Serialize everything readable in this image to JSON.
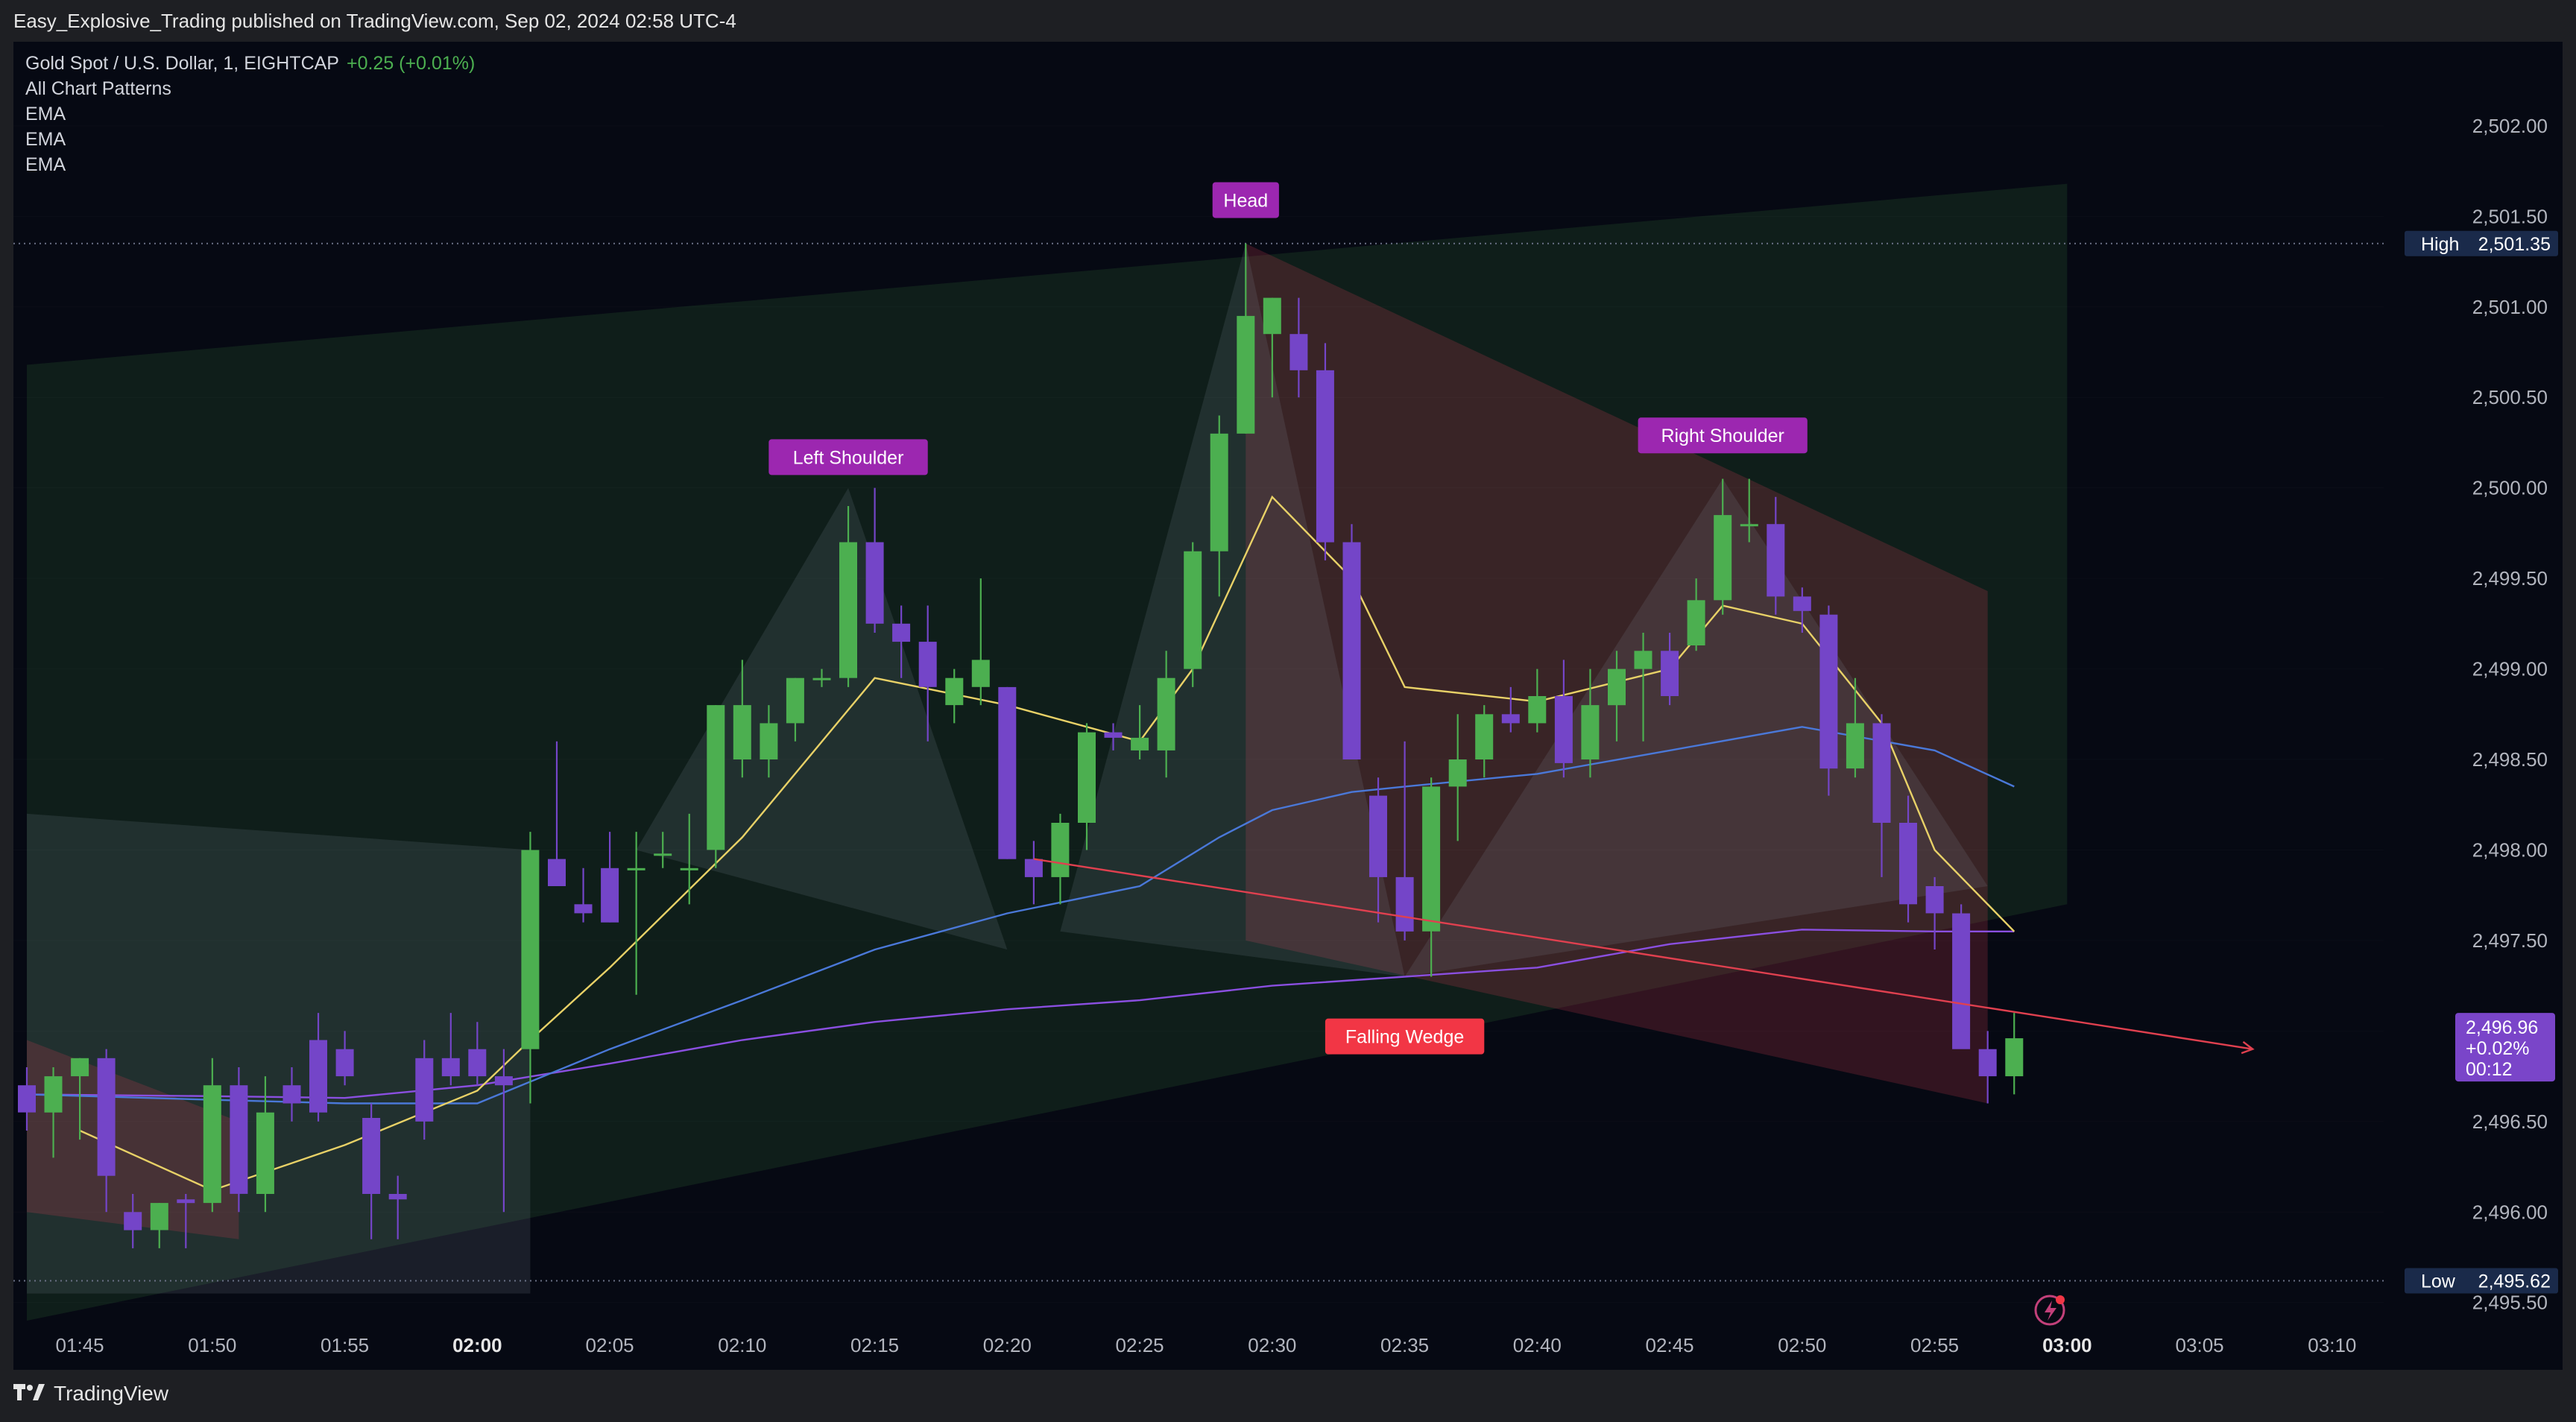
{
  "header": {
    "published": "Easy_Explosive_Trading published on TradingView.com, Sep 02, 2024 02:58 UTC-4"
  },
  "legend": {
    "symbol": "Gold Spot / U.S. Dollar, 1, EIGHTCAP",
    "change": "+0.25 (+0.01%)",
    "indicators": [
      "All Chart Patterns",
      "EMA",
      "EMA",
      "EMA"
    ]
  },
  "footer": {
    "brand": "TradingView",
    "logo_icon": "tradingview-logo-icon"
  },
  "colors": {
    "background": "#060913",
    "candle_up": "#4caf50",
    "candle_down": "#7445c8",
    "ema_fast": "#e8d167",
    "ema_mid": "#4a78d8",
    "ema_slow": "#8a4fe0",
    "pattern_label": "#9c27b0",
    "wedge_label": "#f23645",
    "trend_line": "#e0404f",
    "price_tag": "#7a45c9",
    "high_low_tag": "#1a2a4a"
  },
  "chart_data": {
    "type": "candlestick",
    "x_ticks": [
      "01:45",
      "01:50",
      "01:55",
      "02:00",
      "02:05",
      "02:10",
      "02:15",
      "02:20",
      "02:25",
      "02:30",
      "02:35",
      "02:40",
      "02:45",
      "02:50",
      "02:55",
      "03:00",
      "03:05",
      "03:10"
    ],
    "bold_x_ticks": [
      "02:00",
      "03:00"
    ],
    "y_ticks": [
      "2,495.50",
      "2,496.00",
      "2,496.50",
      "2,497.00",
      "2,497.50",
      "2,498.00",
      "2,498.50",
      "2,499.00",
      "2,499.50",
      "2,500.00",
      "2,500.50",
      "2,501.00",
      "2,501.50",
      "2,502.00"
    ],
    "ylim": [
      2495.4,
      2502.3
    ],
    "candles": [
      {
        "t": "01:43",
        "o": 2496.7,
        "h": 2496.8,
        "l": 2496.45,
        "c": 2496.55
      },
      {
        "t": "01:44",
        "o": 2496.55,
        "h": 2496.8,
        "l": 2496.3,
        "c": 2496.75
      },
      {
        "t": "01:45",
        "o": 2496.75,
        "h": 2496.85,
        "l": 2496.4,
        "c": 2496.85
      },
      {
        "t": "01:46",
        "o": 2496.85,
        "h": 2496.9,
        "l": 2496.0,
        "c": 2496.2
      },
      {
        "t": "01:47",
        "o": 2496.0,
        "h": 2496.1,
        "l": 2495.8,
        "c": 2495.9
      },
      {
        "t": "01:48",
        "o": 2495.9,
        "h": 2496.05,
        "l": 2495.8,
        "c": 2496.05
      },
      {
        "t": "01:49",
        "o": 2496.07,
        "h": 2496.1,
        "l": 2495.8,
        "c": 2496.05
      },
      {
        "t": "01:50",
        "o": 2496.05,
        "h": 2496.85,
        "l": 2496.0,
        "c": 2496.7
      },
      {
        "t": "01:51",
        "o": 2496.7,
        "h": 2496.8,
        "l": 2496.0,
        "c": 2496.1
      },
      {
        "t": "01:52",
        "o": 2496.1,
        "h": 2496.75,
        "l": 2496.0,
        "c": 2496.55
      },
      {
        "t": "01:53",
        "o": 2496.7,
        "h": 2496.8,
        "l": 2496.5,
        "c": 2496.6
      },
      {
        "t": "01:54",
        "o": 2496.95,
        "h": 2497.1,
        "l": 2496.5,
        "c": 2496.55
      },
      {
        "t": "01:55",
        "o": 2496.9,
        "h": 2497.0,
        "l": 2496.7,
        "c": 2496.75
      },
      {
        "t": "01:56",
        "o": 2496.52,
        "h": 2496.6,
        "l": 2495.85,
        "c": 2496.1
      },
      {
        "t": "01:57",
        "o": 2496.1,
        "h": 2496.2,
        "l": 2495.85,
        "c": 2496.07
      },
      {
        "t": "01:58",
        "o": 2496.85,
        "h": 2496.95,
        "l": 2496.4,
        "c": 2496.5
      },
      {
        "t": "01:59",
        "o": 2496.85,
        "h": 2497.1,
        "l": 2496.7,
        "c": 2496.75
      },
      {
        "t": "02:00",
        "o": 2496.9,
        "h": 2497.05,
        "l": 2496.7,
        "c": 2496.75
      },
      {
        "t": "02:01",
        "o": 2496.75,
        "h": 2496.9,
        "l": 2496.0,
        "c": 2496.7
      },
      {
        "t": "02:02",
        "o": 2496.9,
        "h": 2498.1,
        "l": 2496.6,
        "c": 2498.0
      },
      {
        "t": "02:03",
        "o": 2497.95,
        "h": 2498.6,
        "l": 2497.8,
        "c": 2497.8
      },
      {
        "t": "02:04",
        "o": 2497.7,
        "h": 2497.9,
        "l": 2497.6,
        "c": 2497.65
      },
      {
        "t": "02:05",
        "o": 2497.9,
        "h": 2498.1,
        "l": 2497.6,
        "c": 2497.6
      },
      {
        "t": "02:06",
        "o": 2497.9,
        "h": 2498.1,
        "l": 2497.2,
        "c": 2497.9
      },
      {
        "t": "02:07",
        "o": 2497.98,
        "h": 2498.1,
        "l": 2497.9,
        "c": 2497.98
      },
      {
        "t": "02:08",
        "o": 2497.9,
        "h": 2498.2,
        "l": 2497.7,
        "c": 2497.9
      },
      {
        "t": "02:09",
        "o": 2498.0,
        "h": 2498.8,
        "l": 2497.9,
        "c": 2498.8
      },
      {
        "t": "02:10",
        "o": 2498.5,
        "h": 2499.05,
        "l": 2498.4,
        "c": 2498.8
      },
      {
        "t": "02:11",
        "o": 2498.5,
        "h": 2498.8,
        "l": 2498.4,
        "c": 2498.7
      },
      {
        "t": "02:12",
        "o": 2498.7,
        "h": 2498.95,
        "l": 2498.6,
        "c": 2498.95
      },
      {
        "t": "02:13",
        "o": 2498.95,
        "h": 2499.0,
        "l": 2498.9,
        "c": 2498.95
      },
      {
        "t": "02:14",
        "o": 2498.95,
        "h": 2499.9,
        "l": 2498.9,
        "c": 2499.7
      },
      {
        "t": "02:15",
        "o": 2499.7,
        "h": 2500.0,
        "l": 2499.2,
        "c": 2499.25
      },
      {
        "t": "02:16",
        "o": 2499.25,
        "h": 2499.35,
        "l": 2498.95,
        "c": 2499.15
      },
      {
        "t": "02:17",
        "o": 2499.15,
        "h": 2499.35,
        "l": 2498.6,
        "c": 2498.9
      },
      {
        "t": "02:18",
        "o": 2498.8,
        "h": 2499.0,
        "l": 2498.7,
        "c": 2498.95
      },
      {
        "t": "02:19",
        "o": 2498.9,
        "h": 2499.5,
        "l": 2498.8,
        "c": 2499.05
      },
      {
        "t": "02:20",
        "o": 2498.9,
        "h": 2498.9,
        "l": 2497.95,
        "c": 2497.95
      },
      {
        "t": "02:21",
        "o": 2497.95,
        "h": 2498.05,
        "l": 2497.7,
        "c": 2497.85
      },
      {
        "t": "02:22",
        "o": 2497.85,
        "h": 2498.2,
        "l": 2497.7,
        "c": 2498.15
      },
      {
        "t": "02:23",
        "o": 2498.15,
        "h": 2498.7,
        "l": 2498.0,
        "c": 2498.65
      },
      {
        "t": "02:24",
        "o": 2498.65,
        "h": 2498.7,
        "l": 2498.55,
        "c": 2498.62
      },
      {
        "t": "02:25",
        "o": 2498.55,
        "h": 2498.8,
        "l": 2498.5,
        "c": 2498.62
      },
      {
        "t": "02:26",
        "o": 2498.55,
        "h": 2499.1,
        "l": 2498.4,
        "c": 2498.95
      },
      {
        "t": "02:27",
        "o": 2499.0,
        "h": 2499.7,
        "l": 2498.9,
        "c": 2499.65
      },
      {
        "t": "02:28",
        "o": 2499.65,
        "h": 2500.4,
        "l": 2499.4,
        "c": 2500.3
      },
      {
        "t": "02:29",
        "o": 2500.3,
        "h": 2501.35,
        "l": 2500.3,
        "c": 2500.95
      },
      {
        "t": "02:30",
        "o": 2500.85,
        "h": 2501.05,
        "l": 2500.5,
        "c": 2501.05
      },
      {
        "t": "02:31",
        "o": 2500.85,
        "h": 2501.05,
        "l": 2500.5,
        "c": 2500.65
      },
      {
        "t": "02:32",
        "o": 2500.65,
        "h": 2500.8,
        "l": 2499.6,
        "c": 2499.7
      },
      {
        "t": "02:33",
        "o": 2499.7,
        "h": 2499.8,
        "l": 2498.5,
        "c": 2498.5
      },
      {
        "t": "02:34",
        "o": 2498.3,
        "h": 2498.4,
        "l": 2497.6,
        "c": 2497.85
      },
      {
        "t": "02:35",
        "o": 2497.85,
        "h": 2498.6,
        "l": 2497.5,
        "c": 2497.55
      },
      {
        "t": "02:36",
        "o": 2497.55,
        "h": 2498.4,
        "l": 2497.3,
        "c": 2498.35
      },
      {
        "t": "02:37",
        "o": 2498.35,
        "h": 2498.75,
        "l": 2498.05,
        "c": 2498.5
      },
      {
        "t": "02:38",
        "o": 2498.5,
        "h": 2498.8,
        "l": 2498.4,
        "c": 2498.75
      },
      {
        "t": "02:39",
        "o": 2498.75,
        "h": 2498.9,
        "l": 2498.65,
        "c": 2498.7
      },
      {
        "t": "02:40",
        "o": 2498.7,
        "h": 2499.0,
        "l": 2498.65,
        "c": 2498.85
      },
      {
        "t": "02:41",
        "o": 2498.85,
        "h": 2499.05,
        "l": 2498.4,
        "c": 2498.48
      },
      {
        "t": "02:42",
        "o": 2498.5,
        "h": 2499.0,
        "l": 2498.4,
        "c": 2498.8
      },
      {
        "t": "02:43",
        "o": 2498.8,
        "h": 2499.1,
        "l": 2498.6,
        "c": 2499.0
      },
      {
        "t": "02:44",
        "o": 2499.0,
        "h": 2499.2,
        "l": 2498.6,
        "c": 2499.1
      },
      {
        "t": "02:45",
        "o": 2499.1,
        "h": 2499.2,
        "l": 2498.8,
        "c": 2498.85
      },
      {
        "t": "02:46",
        "o": 2499.13,
        "h": 2499.5,
        "l": 2499.1,
        "c": 2499.38
      },
      {
        "t": "02:47",
        "o": 2499.38,
        "h": 2500.05,
        "l": 2499.3,
        "c": 2499.85
      },
      {
        "t": "02:48",
        "o": 2499.8,
        "h": 2500.05,
        "l": 2499.7,
        "c": 2499.8
      },
      {
        "t": "02:49",
        "o": 2499.8,
        "h": 2499.95,
        "l": 2499.3,
        "c": 2499.4
      },
      {
        "t": "02:50",
        "o": 2499.4,
        "h": 2499.45,
        "l": 2499.2,
        "c": 2499.32
      },
      {
        "t": "02:51",
        "o": 2499.3,
        "h": 2499.35,
        "l": 2498.3,
        "c": 2498.45
      },
      {
        "t": "02:52",
        "o": 2498.45,
        "h": 2498.95,
        "l": 2498.4,
        "c": 2498.7
      },
      {
        "t": "02:53",
        "o": 2498.7,
        "h": 2498.75,
        "l": 2497.85,
        "c": 2498.15
      },
      {
        "t": "02:54",
        "o": 2498.15,
        "h": 2498.3,
        "l": 2497.6,
        "c": 2497.7
      },
      {
        "t": "02:55",
        "o": 2497.8,
        "h": 2497.85,
        "l": 2497.45,
        "c": 2497.65
      },
      {
        "t": "02:56",
        "o": 2497.65,
        "h": 2497.7,
        "l": 2496.95,
        "c": 2496.9
      },
      {
        "t": "02:57",
        "o": 2496.9,
        "h": 2497.0,
        "l": 2496.6,
        "c": 2496.75
      },
      {
        "t": "02:58",
        "o": 2496.75,
        "h": 2497.1,
        "l": 2496.65,
        "c": 2496.96
      }
    ],
    "ema_fast": [
      [
        "01:45",
        2496.45
      ],
      [
        "01:50",
        2496.12
      ],
      [
        "01:55",
        2496.37
      ],
      [
        "02:00",
        2496.67
      ],
      [
        "02:02",
        2496.95
      ],
      [
        "02:05",
        2497.35
      ],
      [
        "02:10",
        2498.07
      ],
      [
        "02:15",
        2498.95
      ],
      [
        "02:20",
        2498.8
      ],
      [
        "02:25",
        2498.6
      ],
      [
        "02:27",
        2499.0
      ],
      [
        "02:30",
        2499.95
      ],
      [
        "02:33",
        2499.5
      ],
      [
        "02:35",
        2498.9
      ],
      [
        "02:40",
        2498.82
      ],
      [
        "02:45",
        2499.0
      ],
      [
        "02:47",
        2499.35
      ],
      [
        "02:50",
        2499.25
      ],
      [
        "02:53",
        2498.7
      ],
      [
        "02:55",
        2498.0
      ],
      [
        "02:58",
        2497.55
      ]
    ],
    "ema_mid": [
      [
        "01:43",
        2496.65
      ],
      [
        "01:50",
        2496.62
      ],
      [
        "01:55",
        2496.6
      ],
      [
        "02:00",
        2496.6
      ],
      [
        "02:05",
        2496.9
      ],
      [
        "02:10",
        2497.17
      ],
      [
        "02:15",
        2497.45
      ],
      [
        "02:20",
        2497.65
      ],
      [
        "02:25",
        2497.8
      ],
      [
        "02:28",
        2498.07
      ],
      [
        "02:30",
        2498.22
      ],
      [
        "02:33",
        2498.32
      ],
      [
        "02:35",
        2498.35
      ],
      [
        "02:40",
        2498.42
      ],
      [
        "02:45",
        2498.55
      ],
      [
        "02:50",
        2498.68
      ],
      [
        "02:55",
        2498.55
      ],
      [
        "02:58",
        2498.35
      ]
    ],
    "ema_slow": [
      [
        "01:43",
        2496.65
      ],
      [
        "01:50",
        2496.64
      ],
      [
        "01:55",
        2496.63
      ],
      [
        "02:00",
        2496.7
      ],
      [
        "02:05",
        2496.82
      ],
      [
        "02:10",
        2496.95
      ],
      [
        "02:15",
        2497.05
      ],
      [
        "02:20",
        2497.12
      ],
      [
        "02:25",
        2497.17
      ],
      [
        "02:30",
        2497.25
      ],
      [
        "02:35",
        2497.3
      ],
      [
        "02:40",
        2497.35
      ],
      [
        "02:45",
        2497.48
      ],
      [
        "02:50",
        2497.56
      ],
      [
        "02:55",
        2497.55
      ],
      [
        "02:58",
        2497.55
      ]
    ],
    "zones": [
      {
        "kind": "green",
        "points": [
          [
            "01:43",
            2500.68
          ],
          [
            "03:00",
            2501.68
          ],
          [
            "03:00",
            2497.7
          ],
          [
            "01:43",
            2495.4
          ]
        ]
      },
      {
        "kind": "gray",
        "points": [
          [
            "01:43",
            2498.2
          ],
          [
            "02:02",
            2498.0
          ],
          [
            "02:02",
            2495.55
          ],
          [
            "01:43",
            2495.55
          ]
        ]
      },
      {
        "kind": "red",
        "points": [
          [
            "01:43",
            2496.95
          ],
          [
            "01:51",
            2496.5
          ],
          [
            "01:51",
            2495.85
          ],
          [
            "01:43",
            2496.0
          ]
        ]
      },
      {
        "kind": "red",
        "points": [
          [
            "02:29",
            2501.35
          ],
          [
            "02:57",
            2499.43
          ],
          [
            "02:57",
            2496.6
          ],
          [
            "02:29",
            2497.5
          ]
        ]
      },
      {
        "kind": "gray",
        "points": [
          [
            "02:06",
            2498.0
          ],
          [
            "02:14",
            2500.0
          ],
          [
            "02:20",
            2497.45
          ]
        ]
      },
      {
        "kind": "gray",
        "points": [
          [
            "02:22",
            2497.55
          ],
          [
            "02:29",
            2501.35
          ],
          [
            "02:35",
            2497.3
          ]
        ]
      },
      {
        "kind": "gray",
        "points": [
          [
            "02:35",
            2497.3
          ],
          [
            "02:47",
            2500.05
          ],
          [
            "02:57",
            2497.8
          ]
        ]
      }
    ],
    "trend_line": {
      "from": [
        "02:21",
        2497.95
      ],
      "to": [
        "03:07",
        2496.9
      ]
    },
    "labels": [
      {
        "text": "Left Shoulder",
        "t": "02:14",
        "y": 2500.17,
        "kind": "pattern"
      },
      {
        "text": "Head",
        "t": "02:29",
        "y": 2501.59,
        "kind": "pattern"
      },
      {
        "text": "Right Shoulder",
        "t": "02:47",
        "y": 2500.29,
        "kind": "pattern"
      },
      {
        "text": "Falling Wedge",
        "t": "02:35",
        "y": 2496.97,
        "kind": "wedge"
      }
    ],
    "high": {
      "label": "High",
      "value": 2501.35,
      "text": "2,501.35"
    },
    "low": {
      "label": "Low",
      "value": 2495.62,
      "text": "2,495.62"
    },
    "last_price": {
      "price": "2,496.96",
      "change": "+0.02%",
      "countdown": "00:12",
      "value": 2496.96
    }
  }
}
